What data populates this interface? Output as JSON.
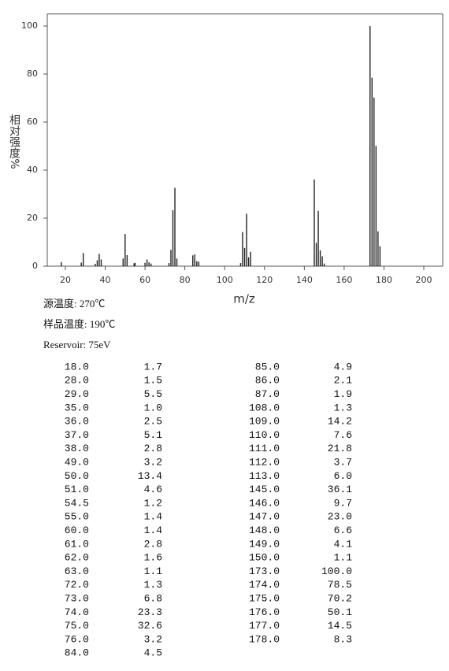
{
  "chart_data": {
    "type": "stick",
    "x_label": "m/z",
    "y_label": "相对强度%",
    "x": [
      18,
      28,
      29,
      35,
      36,
      37,
      38,
      49,
      50,
      51,
      54.5,
      55,
      60,
      61,
      62,
      63,
      72,
      73,
      74,
      75,
      76,
      84,
      85,
      86,
      87,
      108,
      109,
      110,
      111,
      112,
      113,
      145,
      146,
      147,
      148,
      149,
      150,
      173,
      174,
      175,
      176,
      177,
      178
    ],
    "values": [
      1.7,
      1.5,
      5.5,
      1.0,
      2.5,
      5.1,
      2.8,
      3.2,
      13.4,
      4.6,
      1.2,
      1.4,
      1.4,
      2.8,
      1.6,
      1.1,
      1.3,
      6.8,
      23.3,
      32.6,
      3.2,
      4.5,
      4.9,
      2.1,
      1.9,
      1.3,
      14.2,
      7.6,
      21.8,
      3.7,
      6.0,
      36.1,
      9.7,
      23.0,
      6.6,
      4.1,
      1.1,
      100.0,
      78.5,
      70.2,
      50.1,
      14.5,
      8.3
    ],
    "color": "#222222",
    "xlim": [
      10,
      210
    ],
    "xticks": [
      20,
      40,
      60,
      80,
      100,
      120,
      140,
      160,
      180,
      200
    ],
    "ylim": [
      0,
      105
    ],
    "yticks": [
      0,
      20,
      40,
      60,
      80,
      100
    ]
  },
  "notes": [
    "源温度: 270℃",
    "样品温度: 190℃",
    "Reservoir: 75eV"
  ],
  "table": {
    "rows": [
      [
        "18.0",
        "1.7"
      ],
      [
        "28.0",
        "1.5"
      ],
      [
        "29.0",
        "5.5"
      ],
      [
        "35.0",
        "1.0"
      ],
      [
        "36.0",
        "2.5"
      ],
      [
        "37.0",
        "5.1"
      ],
      [
        "38.0",
        "2.8"
      ],
      [
        "49.0",
        "3.2"
      ],
      [
        "50.0",
        "13.4"
      ],
      [
        "51.0",
        "4.6"
      ],
      [
        "54.5",
        "1.2"
      ],
      [
        "55.0",
        "1.4"
      ],
      [
        "60.0",
        "1.4"
      ],
      [
        "61.0",
        "2.8"
      ],
      [
        "62.0",
        "1.6"
      ],
      [
        "63.0",
        "1.1"
      ],
      [
        "72.0",
        "1.3"
      ],
      [
        "73.0",
        "6.8"
      ],
      [
        "74.0",
        "23.3"
      ],
      [
        "75.0",
        "32.6"
      ],
      [
        "76.0",
        "3.2"
      ],
      [
        "84.0",
        "4.5"
      ],
      [
        "85.0",
        "4.9"
      ],
      [
        "86.0",
        "2.1"
      ],
      [
        "87.0",
        "1.9"
      ],
      [
        "108.0",
        "1.3"
      ],
      [
        "109.0",
        "14.2"
      ],
      [
        "110.0",
        "7.6"
      ],
      [
        "111.0",
        "21.8"
      ],
      [
        "112.0",
        "3.7"
      ],
      [
        "113.0",
        "6.0"
      ],
      [
        "145.0",
        "36.1"
      ],
      [
        "146.0",
        "9.7"
      ],
      [
        "147.0",
        "23.0"
      ],
      [
        "148.0",
        "6.6"
      ],
      [
        "149.0",
        "4.1"
      ],
      [
        "150.0",
        "1.1"
      ],
      [
        "173.0",
        "100.0"
      ],
      [
        "174.0",
        "78.5"
      ],
      [
        "175.0",
        "70.2"
      ],
      [
        "176.0",
        "50.1"
      ],
      [
        "177.0",
        "14.5"
      ],
      [
        "178.0",
        "8.3"
      ]
    ]
  }
}
